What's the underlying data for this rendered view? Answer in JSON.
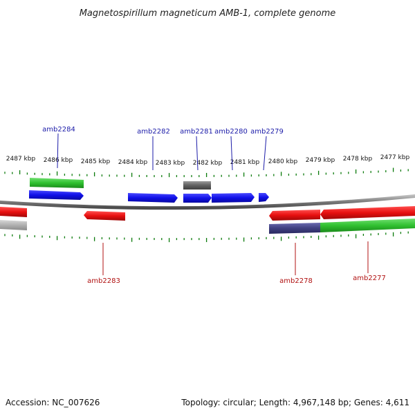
{
  "title": "Magnetospirillum magneticum AMB-1, complete genome",
  "footer": {
    "accession": "Accession: NC_007626",
    "topology": "Topology: circular; Length: 4,967,148 bp; Genes: 4,611"
  },
  "colors": {
    "forward_cds": "#1010e8",
    "reverse_cds": "#e81010",
    "rna_gene": "#30c030",
    "pseudo_gene": "#606060",
    "gray_feature": "#b0b0b0",
    "indigo_feature": "#404080",
    "ticks": "#0a7a0a",
    "backbone": "#7a7a7a",
    "gene_label_forward": "#1a1aa8",
    "gene_label_reverse": "#b01010"
  },
  "scale_labels": [
    "2487 kbp",
    "2486 kbp",
    "2485 kbp",
    "2484 kbp",
    "2483 kbp",
    "2482 kbp",
    "2481 kbp",
    "2480 kbp",
    "2479 kbp",
    "2478 kbp",
    "2477 kbp"
  ],
  "gene_labels_top": [
    "amb2284",
    "amb2282",
    "amb2281",
    "amb2280",
    "amb2279"
  ],
  "gene_labels_bottom": [
    "amb2283",
    "amb2278",
    "amb2277"
  ]
}
